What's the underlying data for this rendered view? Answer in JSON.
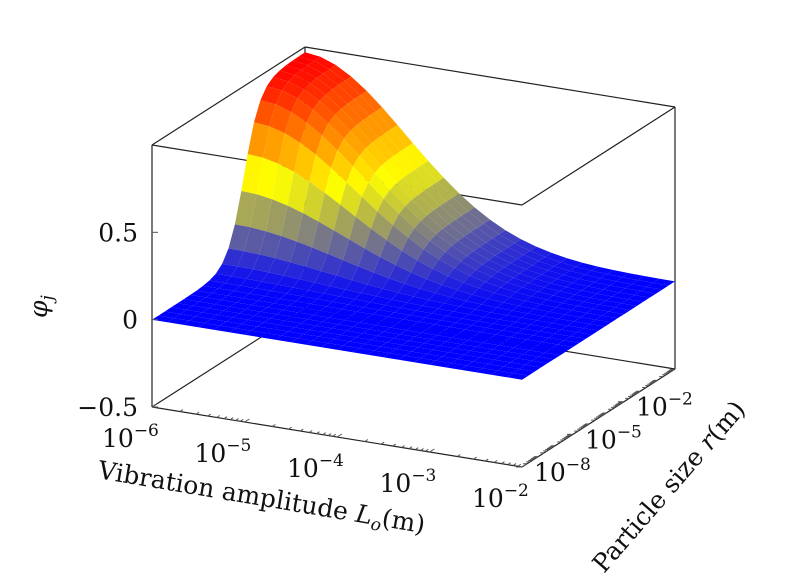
{
  "chart_data": {
    "type": "surface",
    "title": "",
    "xlabel": "Vibration amplitude L_o(m)",
    "xlabel_parts": [
      "Vibration amplitude ",
      "L",
      "o",
      "(m)"
    ],
    "ylabel": "Particle size r(m)",
    "ylabel_parts": [
      "Particle size ",
      "r",
      "(m)"
    ],
    "zlabel": "φj",
    "zlabel_parts": [
      "φ",
      "j"
    ],
    "x_scale": "log",
    "y_scale": "log",
    "x_range_exp": [
      -6,
      -2
    ],
    "y_range_exp": [
      -8,
      1
    ],
    "zlim": [
      -0.5,
      1.0
    ],
    "x_ticks": [
      {
        "exp": -6,
        "label": "-6"
      },
      {
        "exp": -5,
        "label": "-5"
      },
      {
        "exp": -4,
        "label": "-4"
      },
      {
        "exp": -3,
        "label": "-3"
      },
      {
        "exp": -2,
        "label": "-2"
      }
    ],
    "y_ticks": [
      {
        "exp": -8,
        "label": "-8"
      },
      {
        "exp": -5,
        "label": "-5"
      },
      {
        "exp": -2,
        "label": "-2"
      }
    ],
    "z_ticks": [
      {
        "value": -0.5,
        "label": "−0.5"
      },
      {
        "value": 0,
        "label": "0"
      },
      {
        "value": 0.5,
        "label": "0.5"
      }
    ],
    "tick_base": "10",
    "grid_size": [
      24,
      24
    ],
    "surface_peak": {
      "x_exp": -6,
      "y_exp": 1,
      "z": 0.97
    },
    "colormap": [
      "#0000ff",
      "#ffff00",
      "#ff0000"
    ],
    "grid": false,
    "legend": "none"
  }
}
